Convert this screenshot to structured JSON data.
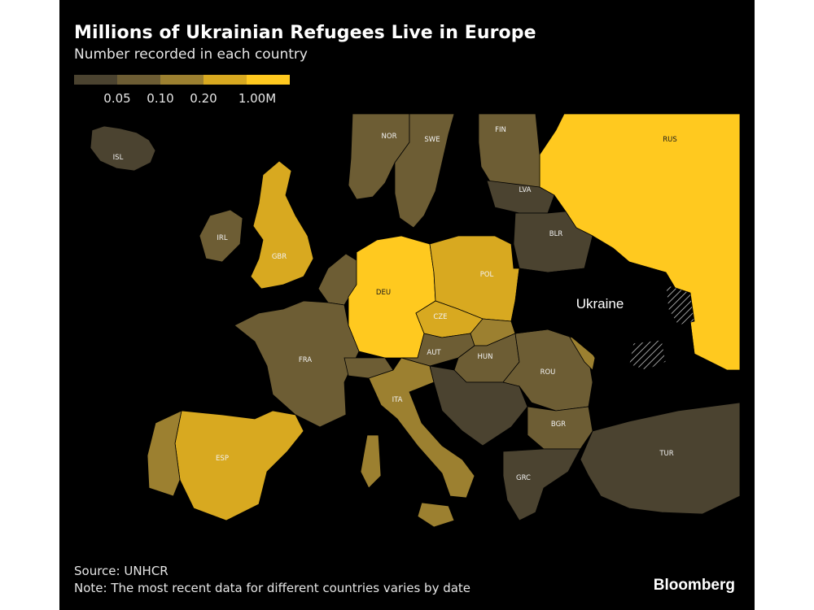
{
  "title": "Millions of Ukrainian Refugees Live in Europe",
  "subtitle": "Number recorded in each country",
  "legend": {
    "colors": [
      "#4b4330",
      "#6d5d34",
      "#9c8030",
      "#d8a920",
      "#ffc91f"
    ],
    "ticks": [
      "0.05",
      "0.10",
      "0.20",
      "1.00M"
    ]
  },
  "countries": {
    "ISL": "ISL",
    "NOR": "NOR",
    "SWE": "SWE",
    "FIN": "FIN",
    "RUS": "RUS",
    "LVA": "LVA",
    "BLR": "BLR",
    "IRL": "IRL",
    "GBR": "GBR",
    "DEU": "DEU",
    "POL": "POL",
    "CZE": "CZE",
    "AUT": "AUT",
    "HUN": "HUN",
    "ROU": "ROU",
    "FRA": "FRA",
    "ITA": "ITA",
    "BGR": "BGR",
    "ESP": "ESP",
    "GRC": "GRC",
    "TUR": "TUR"
  },
  "ukraine_label": "Ukraine",
  "source": "Source: UNHCR",
  "note": "Note: The most recent data for different countries varies by date",
  "brand": "Bloomberg"
}
